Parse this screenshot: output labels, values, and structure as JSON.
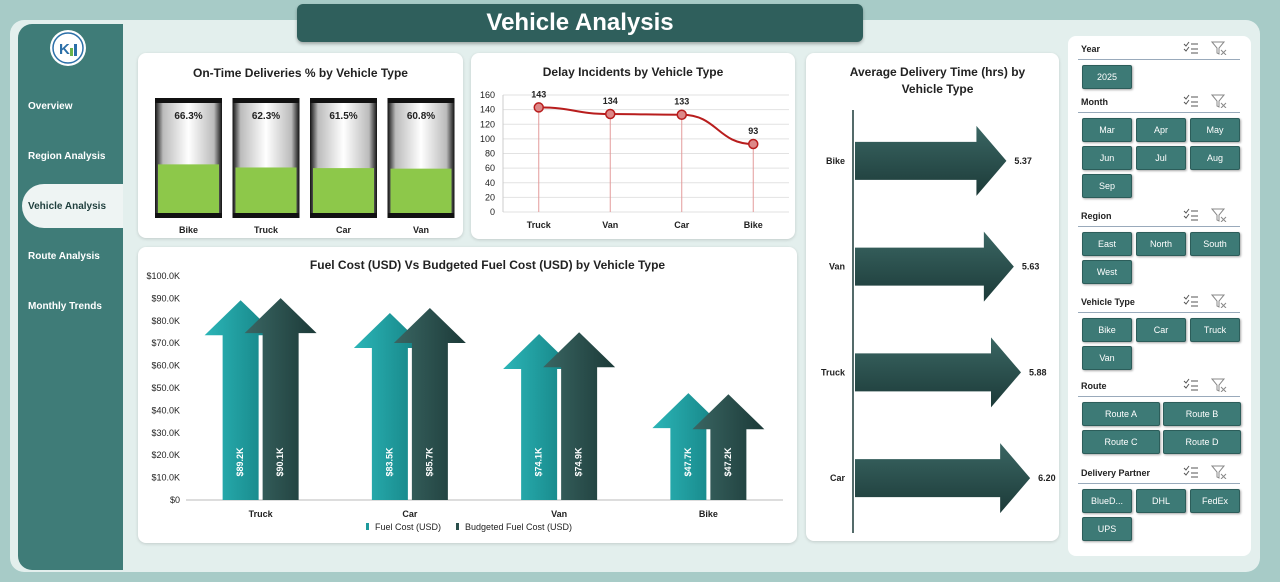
{
  "app": {
    "title": "Vehicle Analysis"
  },
  "sidebar": {
    "logo": "logo",
    "items": [
      {
        "label": "Overview",
        "active": false
      },
      {
        "label": "Region Analysis",
        "active": false
      },
      {
        "label": "Vehicle Analysis",
        "active": true
      },
      {
        "label": "Route Analysis",
        "active": false
      },
      {
        "label": "Monthly Trends",
        "active": false
      }
    ]
  },
  "colors": {
    "sidebar": "#3f7c78",
    "banner": "#2f5f5c",
    "chip": "#3d7a76",
    "green_fill": "#8dc84a",
    "fuel_cost": "#1e9a9c",
    "budgeted": "#2a4f4c",
    "line": "#b81d1d"
  },
  "charts": {
    "ontime": {
      "title": "On-Time Deliveries % by Vehicle Type",
      "chart_data": {
        "type": "bar",
        "categories": [
          "Bike",
          "Truck",
          "Car",
          "Van"
        ],
        "values": [
          66.3,
          62.3,
          61.5,
          60.8
        ],
        "labels": [
          "66.3%",
          "62.3%",
          "61.5%",
          "60.8%"
        ],
        "ylim": [
          0,
          100
        ]
      }
    },
    "delay": {
      "title": "Delay Incidents by Vehicle Type",
      "chart_data": {
        "type": "line",
        "categories": [
          "Truck",
          "Van",
          "Car",
          "Bike"
        ],
        "values": [
          143,
          134,
          133,
          93
        ],
        "yticks": [
          "160",
          "140",
          "120",
          "100",
          "80",
          "60",
          "40",
          "20",
          "0"
        ],
        "ylim": [
          0,
          160
        ]
      }
    },
    "fuel": {
      "title": "Fuel Cost (USD) Vs Budgeted Fuel Cost (USD) by Vehicle Type",
      "chart_data": {
        "type": "bar",
        "categories": [
          "Truck",
          "Car",
          "Van",
          "Bike"
        ],
        "series": [
          {
            "name": "Fuel Cost (USD)",
            "values": [
              89.2,
              83.5,
              74.1,
              47.7
            ],
            "labels": [
              "$89.2K",
              "$83.5K",
              "$74.1K",
              "$47.7K"
            ]
          },
          {
            "name": "Budgeted Fuel Cost (USD)",
            "values": [
              90.1,
              85.7,
              74.9,
              47.2
            ],
            "labels": [
              "$90.1K",
              "$85.7K",
              "$74.9K",
              "$47.2K"
            ]
          }
        ],
        "yticks": [
          "$100.0K",
          "$90.0K",
          "$80.0K",
          "$70.0K",
          "$60.0K",
          "$50.0K",
          "$40.0K",
          "$30.0K",
          "$20.0K",
          "$10.0K",
          "$0"
        ],
        "ylim": [
          0,
          100
        ]
      }
    },
    "avgtime": {
      "title": "Average Delivery Time (hrs) by Vehicle Type",
      "chart_data": {
        "type": "bar",
        "categories": [
          "Bike",
          "Van",
          "Truck",
          "Car"
        ],
        "values": [
          5.37,
          5.63,
          5.88,
          6.2
        ],
        "labels": [
          "5.37",
          "5.63",
          "5.88",
          "6.20"
        ]
      }
    }
  },
  "filters": {
    "year": {
      "label": "Year",
      "options": [
        "2025"
      ]
    },
    "month": {
      "label": "Month",
      "options": [
        "Mar",
        "Apr",
        "May",
        "Jun",
        "Jul",
        "Aug",
        "Sep"
      ]
    },
    "region": {
      "label": "Region",
      "options": [
        "East",
        "North",
        "South",
        "West"
      ]
    },
    "vehicle": {
      "label": "Vehicle Type",
      "options": [
        "Bike",
        "Car",
        "Truck",
        "Van"
      ]
    },
    "route": {
      "label": "Route",
      "options": [
        "Route A",
        "Route B",
        "Route C",
        "Route D"
      ]
    },
    "partner": {
      "label": "Delivery Partner",
      "options": [
        "BlueD...",
        "DHL",
        "FedEx",
        "UPS"
      ]
    }
  }
}
